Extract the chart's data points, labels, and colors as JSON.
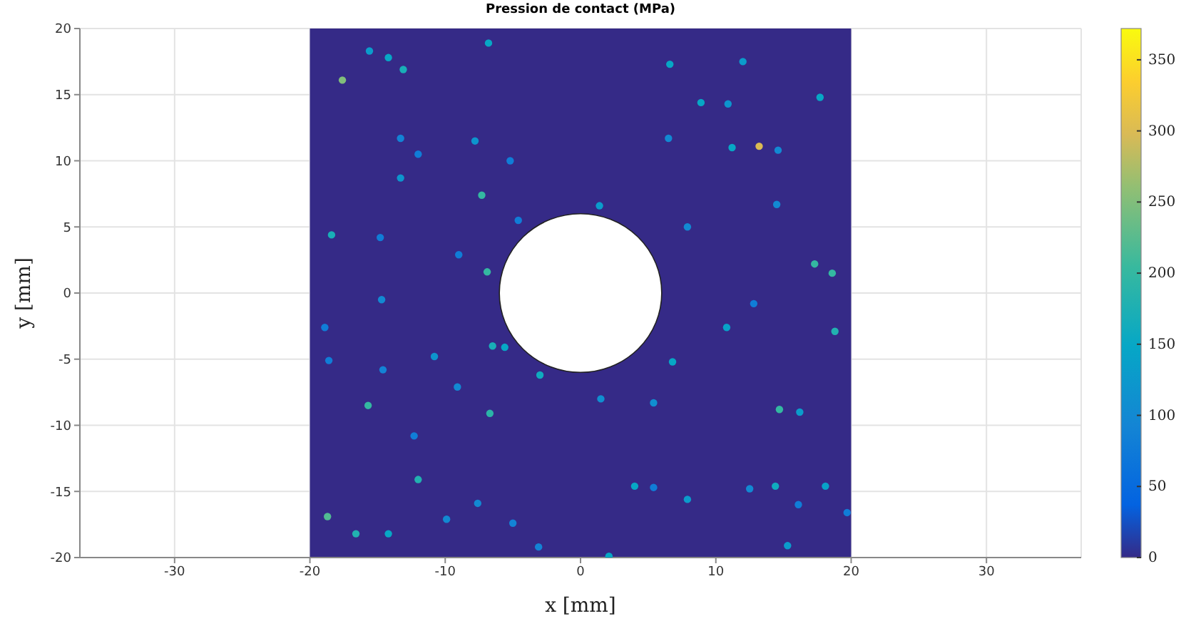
{
  "chart_data": {
    "type": "scatter",
    "title": "Pression de contact (MPa)",
    "xlabel": "x [mm]",
    "ylabel": "y [mm]",
    "xlim": [
      -37,
      37
    ],
    "xticks": [
      -30,
      -20,
      -10,
      0,
      10,
      20,
      30
    ],
    "ylim": [
      -20,
      20
    ],
    "yticks": [
      -20,
      -15,
      -10,
      -5,
      0,
      5,
      10,
      15,
      20
    ],
    "grid": true,
    "marker": "circle",
    "clim": [
      0,
      372
    ],
    "cticks": [
      0,
      50,
      100,
      150,
      200,
      250,
      300,
      350
    ],
    "bands": [
      {
        "axis": "x",
        "from": -20,
        "to": 20,
        "color": "#352a87"
      }
    ],
    "x": [
      -17.6,
      -15.6,
      -14.2,
      -13.1,
      -6.8,
      -7.8,
      -5.2,
      -13.3,
      -12.0,
      -13.3,
      -7.3,
      -18.4,
      -14.8,
      -6.9,
      -9.0,
      -4.6,
      1.4,
      6.6,
      12.0,
      8.9,
      10.9,
      17.7,
      11.2,
      13.2,
      14.6,
      6.5,
      7.9,
      14.5,
      17.3,
      18.6,
      18.8,
      10.8,
      12.8,
      6.8,
      5.4,
      14.7,
      16.2,
      1.5,
      4.0,
      5.4,
      7.9,
      12.5,
      14.4,
      18.1,
      16.1,
      15.3,
      19.7,
      2.1,
      -6.5,
      -5.6,
      -10.8,
      -14.6,
      -15.7,
      -6.7,
      -3.0,
      -9.1,
      -12.0,
      -18.7,
      -16.6,
      -14.2,
      -9.9,
      -7.6,
      -5.0,
      -3.1,
      -12.3,
      -18.6,
      -18.9,
      -14.7
    ],
    "values": [
      16.1,
      18.3,
      17.8,
      16.9,
      18.9,
      11.5,
      10.0,
      8.7,
      10.5,
      11.7,
      7.4,
      4.4,
      4.2,
      1.6,
      2.9,
      5.5,
      6.6,
      17.3,
      17.5,
      14.4,
      14.3,
      14.8,
      11.0,
      11.1,
      10.8,
      11.7,
      5.0,
      6.7,
      2.2,
      1.5,
      -2.9,
      -2.6,
      -0.8,
      -5.2,
      -8.3,
      -8.8,
      -9.0,
      -8.0,
      -14.6,
      -14.7,
      -15.6,
      -14.8,
      -14.6,
      -14.6,
      -16.0,
      -19.1,
      -16.6,
      -19.9,
      -4.0,
      -4.1,
      -4.8,
      -5.8,
      -8.5,
      -9.1,
      -6.2,
      -7.1,
      -14.1,
      -16.9,
      -18.2,
      -18.2,
      -17.1,
      -15.9,
      -17.4,
      -19.2,
      -10.8,
      -5.1,
      -2.6,
      -0.5
    ],
    "cvalues": [
      250,
      130,
      150,
      170,
      150,
      120,
      80,
      120,
      80,
      90,
      200,
      170,
      80,
      200,
      80,
      80,
      130,
      150,
      130,
      150,
      120,
      150,
      150,
      300,
      100,
      100,
      100,
      100,
      200,
      200,
      180,
      140,
      80,
      150,
      110,
      200,
      130,
      110,
      150,
      80,
      130,
      100,
      160,
      140,
      80,
      130,
      80,
      150,
      170,
      150,
      120,
      90,
      200,
      190,
      160,
      100,
      180,
      220,
      180,
      150,
      100,
      100,
      90,
      90,
      80,
      80,
      80,
      100
    ]
  }
}
